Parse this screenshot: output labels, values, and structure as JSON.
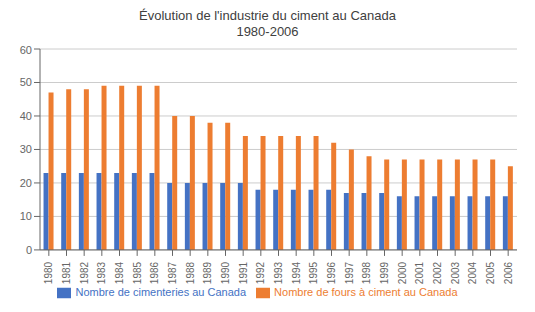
{
  "chart_data": {
    "type": "bar",
    "title": "Évolution de l'industrie du ciment au Canada\n1980-2006",
    "categories": [
      "1980",
      "1981",
      "1982",
      "1983",
      "1984",
      "1985",
      "1986",
      "1987",
      "1988",
      "1989",
      "1990",
      "1991",
      "1992",
      "1993",
      "1994",
      "1995",
      "1996",
      "1997",
      "1998",
      "1999",
      "2000",
      "2001",
      "2002",
      "2003",
      "2004",
      "2005",
      "2006"
    ],
    "series": [
      {
        "name": "Nombre de cimenteries au Canada",
        "color": "#4472C4",
        "values": [
          23,
          23,
          23,
          23,
          23,
          23,
          23,
          20,
          20,
          20,
          20,
          20,
          18,
          18,
          18,
          18,
          18,
          17,
          17,
          17,
          16,
          16,
          16,
          16,
          16,
          16,
          16
        ]
      },
      {
        "name": "Nombre de fours à ciment au Canada",
        "color": "#ED7D31",
        "values": [
          47,
          48,
          48,
          49,
          49,
          49,
          49,
          40,
          40,
          38,
          38,
          34,
          34,
          34,
          34,
          34,
          32,
          30,
          28,
          27,
          27,
          27,
          27,
          27,
          27,
          27,
          25
        ]
      }
    ],
    "ylim": [
      0,
      60
    ],
    "yticks": [
      0,
      10,
      20,
      30,
      40,
      50,
      60
    ],
    "grid": true,
    "legend": "bottom"
  }
}
